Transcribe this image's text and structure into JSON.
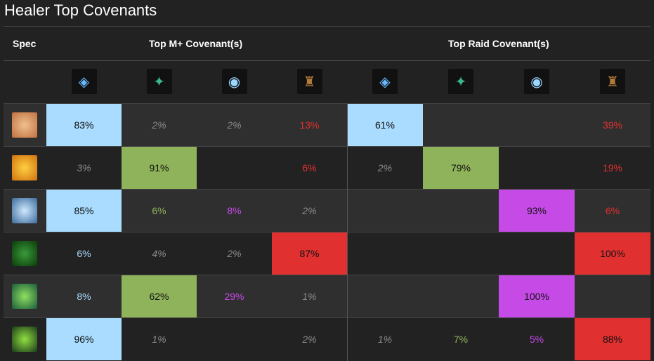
{
  "title": "Healer Top Covenants",
  "headers": {
    "spec": "Spec",
    "mplus": "Top M+ Covenant(s)",
    "raid": "Top Raid Covenant(s)"
  },
  "covenants": [
    {
      "icon": "kyrian-icon",
      "color": "#a9dcff"
    },
    {
      "icon": "necrolord-icon",
      "color": "#8fb35a"
    },
    {
      "icon": "night-fae-icon",
      "color": "#c64be6"
    },
    {
      "icon": "venthyr-icon",
      "color": "#e03030"
    }
  ],
  "rows": [
    {
      "spec_icon": "holy-paladin-icon",
      "mplus": [
        "83%",
        "2%",
        "2%",
        "13%"
      ],
      "raid": [
        "61%",
        "",
        "",
        "39%"
      ]
    },
    {
      "spec_icon": "discipline-priest-icon",
      "mplus": [
        "3%",
        "91%",
        "",
        "6%"
      ],
      "raid": [
        "2%",
        "79%",
        "",
        "19%"
      ]
    },
    {
      "spec_icon": "holy-priest-icon",
      "mplus": [
        "85%",
        "6%",
        "8%",
        "2%"
      ],
      "raid": [
        "",
        "",
        "93%",
        "6%"
      ]
    },
    {
      "spec_icon": "mistweaver-monk-icon",
      "mplus": [
        "6%",
        "4%",
        "2%",
        "87%"
      ],
      "raid": [
        "",
        "",
        "",
        "100%"
      ]
    },
    {
      "spec_icon": "restoration-druid-icon",
      "mplus": [
        "8%",
        "62%",
        "29%",
        "1%"
      ],
      "raid": [
        "",
        "",
        "100%",
        ""
      ]
    },
    {
      "spec_icon": "restoration-shaman-icon",
      "mplus": [
        "96%",
        "1%",
        "",
        "2%"
      ],
      "raid": [
        "1%",
        "7%",
        "5%",
        "88%"
      ]
    }
  ]
}
